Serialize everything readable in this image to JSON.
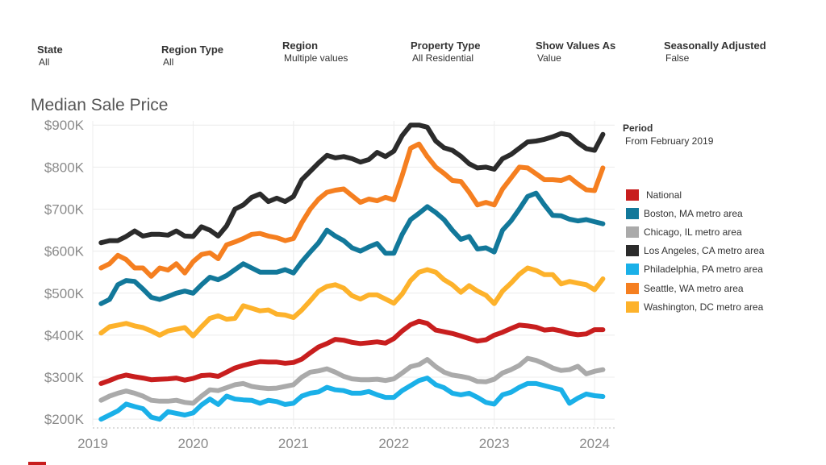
{
  "filters": [
    {
      "label": "State",
      "value": "All"
    },
    {
      "label": "Region Type",
      "value": "All"
    },
    {
      "label": "Region",
      "value": "Multiple values"
    },
    {
      "label": "Property Type",
      "value": "All Residential"
    },
    {
      "label": "Show Values As",
      "value": "Value"
    },
    {
      "label": "Seasonally Adjusted",
      "value": "False"
    }
  ],
  "legend": {
    "title": "Period",
    "subtitle": "From February 2019"
  },
  "chart_data": {
    "type": "line",
    "title": "Median Sale Price",
    "xlabel": "",
    "ylabel": "",
    "x_ticks": [
      "2019",
      "2020",
      "2021",
      "2022",
      "2023",
      "2024"
    ],
    "y_ticks": [
      "$200K",
      "$300K",
      "$400K",
      "$500K",
      "$600K",
      "$700K",
      "$800K",
      "$900K"
    ],
    "ylim": [
      185000,
      910000
    ],
    "xlim": [
      2019.0,
      2024.2
    ],
    "grid": true,
    "legend_position": "right",
    "x": [
      2019.083,
      2019.167,
      2019.25,
      2019.333,
      2019.417,
      2019.5,
      2019.583,
      2019.667,
      2019.75,
      2019.833,
      2019.917,
      2020.0,
      2020.083,
      2020.167,
      2020.25,
      2020.333,
      2020.417,
      2020.5,
      2020.583,
      2020.667,
      2020.75,
      2020.833,
      2020.917,
      2021.0,
      2021.083,
      2021.167,
      2021.25,
      2021.333,
      2021.417,
      2021.5,
      2021.583,
      2021.667,
      2021.75,
      2021.833,
      2021.917,
      2022.0,
      2022.083,
      2022.167,
      2022.25,
      2022.333,
      2022.417,
      2022.5,
      2022.583,
      2022.667,
      2022.75,
      2022.833,
      2022.917,
      2023.0,
      2023.083,
      2023.167,
      2023.25,
      2023.333,
      2023.417,
      2023.5,
      2023.583,
      2023.667,
      2023.75,
      2023.833,
      2023.917,
      2024.0,
      2024.083
    ],
    "series": [
      {
        "name": "National",
        "color": "#c81e1e",
        "values": [
          285000,
          292000,
          300000,
          305000,
          301000,
          298000,
          294000,
          295000,
          296000,
          298000,
          293000,
          297000,
          304000,
          305000,
          302000,
          312000,
          322000,
          328000,
          333000,
          337000,
          336000,
          336000,
          333000,
          335000,
          343000,
          358000,
          372000,
          380000,
          390000,
          388000,
          383000,
          380000,
          382000,
          384000,
          381000,
          392000,
          410000,
          425000,
          433000,
          428000,
          412000,
          408000,
          404000,
          398000,
          392000,
          386000,
          389000,
          400000,
          407000,
          416000,
          424000,
          422000,
          419000,
          412000,
          414000,
          410000,
          404000,
          401000,
          403000,
          413000,
          413000
        ]
      },
      {
        "name": "Boston, MA metro area",
        "color": "#12789a",
        "values": [
          475000,
          485000,
          520000,
          530000,
          528000,
          510000,
          490000,
          485000,
          492000,
          500000,
          505000,
          500000,
          520000,
          538000,
          532000,
          542000,
          556000,
          570000,
          560000,
          550000,
          550000,
          550000,
          556000,
          548000,
          575000,
          598000,
          620000,
          650000,
          636000,
          625000,
          608000,
          600000,
          610000,
          618000,
          595000,
          595000,
          640000,
          675000,
          690000,
          706000,
          692000,
          675000,
          650000,
          628000,
          635000,
          605000,
          608000,
          598000,
          650000,
          672000,
          700000,
          730000,
          738000,
          710000,
          685000,
          684000,
          676000,
          672000,
          675000,
          670000,
          665000
        ]
      },
      {
        "name": "Chicago, IL metro area",
        "color": "#aaaaaa",
        "values": [
          245000,
          255000,
          262000,
          267000,
          262000,
          255000,
          245000,
          243000,
          243000,
          245000,
          240000,
          238000,
          255000,
          270000,
          268000,
          275000,
          282000,
          285000,
          278000,
          275000,
          273000,
          274000,
          278000,
          282000,
          300000,
          312000,
          315000,
          320000,
          312000,
          302000,
          296000,
          294000,
          294000,
          295000,
          292000,
          296000,
          310000,
          325000,
          330000,
          342000,
          325000,
          312000,
          305000,
          302000,
          298000,
          290000,
          289000,
          295000,
          310000,
          318000,
          328000,
          345000,
          340000,
          332000,
          322000,
          316000,
          318000,
          326000,
          308000,
          314000,
          318000
        ]
      },
      {
        "name": "Los Angeles, CA metro area",
        "color": "#2b2b2b",
        "values": [
          620000,
          625000,
          625000,
          635000,
          648000,
          636000,
          640000,
          640000,
          638000,
          648000,
          636000,
          635000,
          658000,
          650000,
          636000,
          660000,
          700000,
          710000,
          728000,
          736000,
          718000,
          726000,
          718000,
          730000,
          770000,
          790000,
          810000,
          828000,
          822000,
          825000,
          820000,
          812000,
          818000,
          835000,
          825000,
          838000,
          875000,
          900000,
          900000,
          895000,
          862000,
          846000,
          840000,
          826000,
          808000,
          798000,
          800000,
          795000,
          820000,
          830000,
          845000,
          860000,
          862000,
          866000,
          872000,
          880000,
          876000,
          858000,
          844000,
          840000,
          878000
        ]
      },
      {
        "name": "Philadelphia, PA metro area",
        "color": "#1ab0e8",
        "values": [
          200000,
          210000,
          220000,
          236000,
          230000,
          225000,
          205000,
          200000,
          218000,
          214000,
          210000,
          215000,
          234000,
          248000,
          235000,
          255000,
          248000,
          246000,
          245000,
          238000,
          245000,
          242000,
          235000,
          238000,
          255000,
          262000,
          265000,
          276000,
          270000,
          268000,
          262000,
          262000,
          266000,
          258000,
          252000,
          252000,
          268000,
          280000,
          292000,
          298000,
          282000,
          275000,
          262000,
          258000,
          262000,
          252000,
          240000,
          236000,
          258000,
          264000,
          276000,
          285000,
          285000,
          280000,
          275000,
          270000,
          238000,
          250000,
          260000,
          256000,
          254000
        ]
      },
      {
        "name": "Seattle, WA metro area",
        "color": "#f57f20",
        "values": [
          560000,
          570000,
          590000,
          580000,
          560000,
          560000,
          540000,
          560000,
          555000,
          570000,
          548000,
          575000,
          592000,
          596000,
          582000,
          615000,
          622000,
          630000,
          640000,
          642000,
          636000,
          632000,
          625000,
          630000,
          668000,
          700000,
          724000,
          740000,
          745000,
          748000,
          732000,
          716000,
          724000,
          720000,
          728000,
          722000,
          780000,
          845000,
          855000,
          825000,
          800000,
          785000,
          768000,
          766000,
          740000,
          710000,
          716000,
          710000,
          748000,
          774000,
          800000,
          798000,
          784000,
          770000,
          770000,
          768000,
          776000,
          760000,
          746000,
          744000,
          798000
        ]
      },
      {
        "name": "Washington, DC metro area",
        "color": "#fdb22b",
        "values": [
          405000,
          420000,
          424000,
          428000,
          422000,
          418000,
          410000,
          400000,
          410000,
          414000,
          418000,
          398000,
          420000,
          440000,
          446000,
          438000,
          440000,
          470000,
          464000,
          458000,
          460000,
          450000,
          448000,
          442000,
          460000,
          482000,
          505000,
          516000,
          520000,
          512000,
          494000,
          486000,
          496000,
          496000,
          486000,
          476000,
          498000,
          530000,
          550000,
          556000,
          550000,
          532000,
          520000,
          502000,
          518000,
          505000,
          495000,
          475000,
          505000,
          524000,
          545000,
          560000,
          554000,
          544000,
          544000,
          522000,
          528000,
          524000,
          520000,
          508000,
          534000
        ]
      }
    ]
  }
}
